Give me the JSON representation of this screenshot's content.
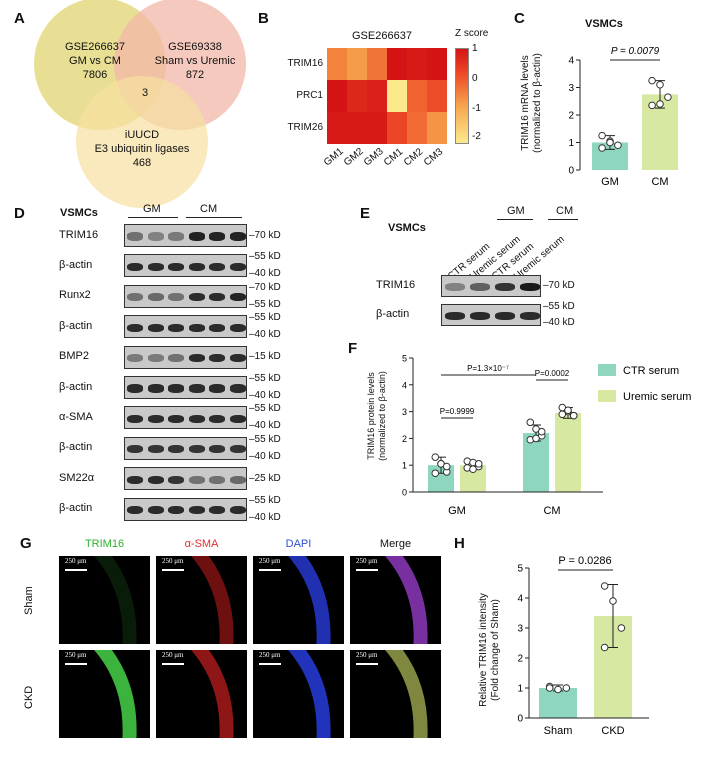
{
  "panels": {
    "A": {
      "label": "A",
      "venn": [
        {
          "lines": [
            "GSE266637",
            "GM vs CM",
            "7806"
          ],
          "color": "#e6dc8a"
        },
        {
          "lines": [
            "GSE69338",
            "Sham vs Uremic",
            "872"
          ],
          "color": "#f3b7a8"
        },
        {
          "lines": [
            "iUUCD",
            "E3 ubiquitin ligases",
            "468"
          ],
          "color": "#f6dfa0"
        }
      ],
      "intersection": "3"
    },
    "B": {
      "label": "B",
      "title": "GSE266637",
      "legend_title": "Z score",
      "legend_ticks": [
        "1",
        "0",
        "-1",
        "-2"
      ],
      "rows": [
        "TRIM16",
        "PRC1",
        "TRIM26"
      ],
      "cols": [
        "GM1",
        "GM2",
        "GM3",
        "CM1",
        "CM2",
        "CM3"
      ],
      "z": [
        [
          -0.6,
          -0.9,
          -0.4,
          1.0,
          0.9,
          1.0
        ],
        [
          1.0,
          0.7,
          0.8,
          -2.0,
          -0.2,
          0.1
        ],
        [
          0.9,
          0.9,
          0.9,
          0.2,
          -0.3,
          -0.8
        ]
      ]
    },
    "C": {
      "label": "C",
      "title": "VSMCs",
      "ylabel": [
        "TRIM16 mRNA levels",
        "(normalized to β-actin)"
      ],
      "pvalue": "P = 0.0079",
      "yticks": [
        "0",
        "1",
        "2",
        "3",
        "4"
      ],
      "categories": [
        "GM",
        "CM"
      ]
    },
    "D": {
      "label": "D",
      "cell": "VSMCs",
      "groups": [
        "GM",
        "CM"
      ],
      "rows": [
        {
          "name": "TRIM16",
          "marks": [
            "70 kD"
          ],
          "intensity": [
            0.5,
            0.4,
            0.45,
            0.95,
            0.95,
            0.95
          ]
        },
        {
          "name": "β-actin",
          "marks": [
            "55 kD",
            "40 kD"
          ],
          "intensity": [
            0.9,
            0.9,
            0.9,
            0.9,
            0.9,
            0.9
          ]
        },
        {
          "name": "Runx2",
          "marks": [
            "70 kD",
            "55 kD"
          ],
          "intensity": [
            0.5,
            0.55,
            0.5,
            0.9,
            0.9,
            0.95
          ]
        },
        {
          "name": "β-actin",
          "marks": [
            "55 kD",
            "40 kD"
          ],
          "intensity": [
            0.9,
            0.9,
            0.9,
            0.9,
            0.9,
            0.9
          ]
        },
        {
          "name": "BMP2",
          "marks": [
            "15 kD"
          ],
          "intensity": [
            0.45,
            0.45,
            0.5,
            0.9,
            0.9,
            0.9
          ]
        },
        {
          "name": "β-actin",
          "marks": [
            "55 kD",
            "40 kD"
          ],
          "intensity": [
            0.9,
            0.9,
            0.9,
            0.9,
            0.9,
            0.9
          ]
        },
        {
          "name": "α-SMA",
          "marks": [
            "55 kD",
            "40 kD"
          ],
          "intensity": [
            0.9,
            0.9,
            0.9,
            0.9,
            0.9,
            0.9
          ]
        },
        {
          "name": "β-actin",
          "marks": [
            "55 kD",
            "40 kD"
          ],
          "intensity": [
            0.85,
            0.85,
            0.85,
            0.85,
            0.85,
            0.85
          ]
        },
        {
          "name": "SM22α",
          "marks": [
            "25 kD"
          ],
          "intensity": [
            0.9,
            0.9,
            0.85,
            0.5,
            0.5,
            0.55
          ]
        },
        {
          "name": "β-actin",
          "marks": [
            "55 kD",
            "40 kD"
          ],
          "intensity": [
            0.9,
            0.9,
            0.9,
            0.9,
            0.9,
            0.9
          ]
        }
      ]
    },
    "E": {
      "label": "E",
      "cell": "VSMCs",
      "groups": [
        "GM",
        "CM"
      ],
      "lanes": [
        "CTR serum",
        "Uremic serum",
        "CTR serum",
        "Uremic serum"
      ],
      "rows": [
        {
          "name": "TRIM16",
          "marks": [
            "70 kD"
          ],
          "intensity": [
            0.4,
            0.6,
            0.85,
            1.0
          ]
        },
        {
          "name": "β-actin",
          "marks": [
            "55 kD",
            "40 kD"
          ],
          "intensity": [
            0.9,
            0.9,
            0.9,
            0.9
          ]
        }
      ]
    },
    "F": {
      "label": "F",
      "ylabel": [
        "TRIM16 protein levels",
        "(normalized to β-actin)"
      ],
      "yticks": [
        "0",
        "1",
        "2",
        "3",
        "4",
        "5"
      ],
      "categories": [
        "GM",
        "CM"
      ],
      "legend": [
        {
          "name": "CTR serum",
          "color": "#8fd6c1"
        },
        {
          "name": "Uremic serum",
          "color": "#d6e8a2"
        }
      ],
      "p_gm": "P=0.9999",
      "p_cm": "P=0.0002",
      "p_across": "P=1.3×10⁻⁷"
    },
    "G": {
      "label": "G",
      "channels": [
        {
          "name": "TRIM16",
          "color": "#2fb12f"
        },
        {
          "name": "α-SMA",
          "color": "#e03030"
        },
        {
          "name": "DAPI",
          "color": "#2f4fd0"
        },
        {
          "name": "Merge",
          "color": "#111111"
        }
      ],
      "rows": [
        "Sham",
        "CKD"
      ],
      "scale": "250 μm"
    },
    "H": {
      "label": "H",
      "ylabel": [
        "Relative TRIM16 intensity",
        "(Fold change of Sham)"
      ],
      "pvalue": "P = 0.0286",
      "yticks": [
        "0",
        "1",
        "2",
        "3",
        "4",
        "5"
      ],
      "categories": [
        "Sham",
        "CKD"
      ]
    }
  },
  "chart_data": [
    {
      "type": "bar",
      "title": "VSMCs",
      "ylabel": "TRIM16 mRNA levels (normalized to β-actin)",
      "categories": [
        "GM",
        "CM"
      ],
      "values": [
        1.0,
        2.75
      ],
      "errors": [
        0.25,
        0.5
      ],
      "points": [
        [
          1.25,
          1.05,
          0.9,
          0.8,
          1.0
        ],
        [
          3.25,
          3.1,
          2.65,
          2.35,
          2.4
        ]
      ],
      "colors": [
        "#8fd6c1",
        "#d6e8a2"
      ],
      "ylim": [
        0,
        4
      ]
    },
    {
      "type": "bar",
      "ylabel": "TRIM16 protein levels (normalized to β-actin)",
      "categories": [
        "GM",
        "CM"
      ],
      "series": [
        {
          "name": "CTR serum",
          "values": [
            1.0,
            2.2
          ],
          "errors": [
            0.3,
            0.3
          ],
          "points": [
            [
              1.3,
              1.05,
              0.75,
              0.7,
              1.05,
              0.95
            ],
            [
              2.6,
              2.35,
              2.1,
              1.95,
              2.0,
              2.25
            ]
          ]
        },
        {
          "name": "Uremic serum",
          "values": [
            1.0,
            2.95
          ],
          "errors": [
            0.15,
            0.2
          ],
          "points": [
            [
              1.15,
              1.1,
              0.95,
              0.9,
              0.85,
              1.05
            ],
            [
              3.15,
              3.0,
              2.85,
              2.9,
              3.05,
              2.85
            ]
          ]
        }
      ],
      "ylim": [
        0,
        5
      ]
    },
    {
      "type": "bar",
      "ylabel": "Relative TRIM16 intensity (Fold change of Sham)",
      "categories": [
        "Sham",
        "CKD"
      ],
      "values": [
        1.0,
        3.4
      ],
      "errors": [
        0.1,
        1.05
      ],
      "points": [
        [
          1.05,
          0.95,
          1.0,
          1.0
        ],
        [
          4.4,
          3.9,
          3.0,
          2.35
        ]
      ],
      "colors": [
        "#8fd6c1",
        "#d6e8a2"
      ],
      "ylim": [
        0,
        5
      ]
    }
  ]
}
